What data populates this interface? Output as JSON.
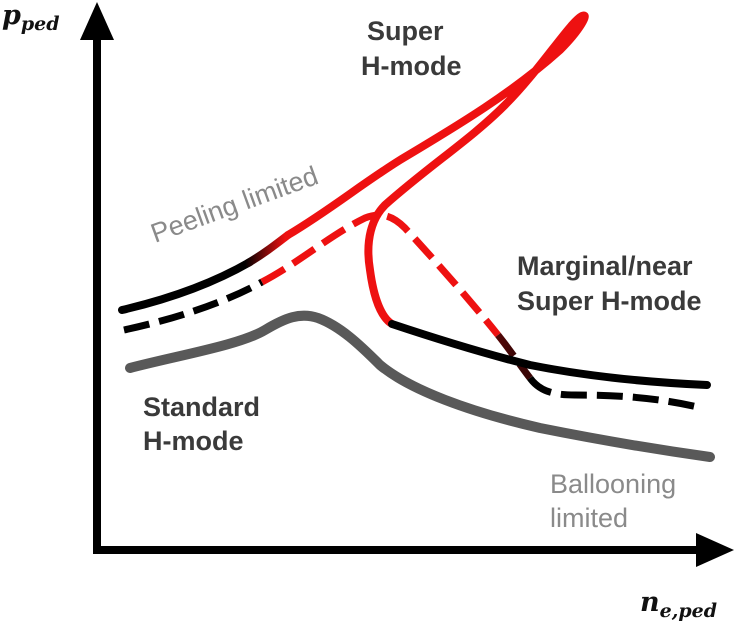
{
  "axes": {
    "y_label_main": "p",
    "y_label_sub": "ped",
    "x_label_main": "n",
    "x_label_sub": "e,ped"
  },
  "labels": {
    "super_h_line1": "Super",
    "super_h_line2": "H-mode",
    "peeling": "Peeling limited",
    "marginal_line1": "Marginal/near",
    "marginal_line2": "Super H-mode",
    "standard_line1": "Standard",
    "standard_line2": "H-mode",
    "ballooning_line1": "Ballooning",
    "ballooning_line2": "limited"
  },
  "colors": {
    "super_h_red": "#ee1111",
    "dark_red": "#4a0505",
    "black": "#000000",
    "gray_curve": "#595959",
    "label_dark": "#3a3a3a",
    "label_gray": "#8a8a8a"
  }
}
